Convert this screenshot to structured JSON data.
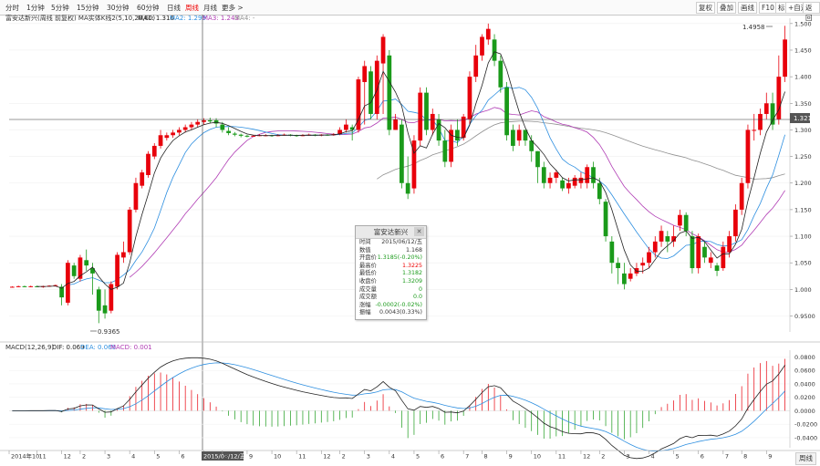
{
  "toolbar": {
    "timeframes": [
      "分时",
      "1分钟",
      "5分钟",
      "15分钟",
      "30分钟",
      "60分钟",
      "日线",
      "周线",
      "月线",
      "更多 >"
    ],
    "active": "周线",
    "right_buttons": [
      "复权",
      "叠加",
      "画线",
      "F10",
      "标记",
      "+自选",
      "返回"
    ]
  },
  "legend": {
    "main": "富安达新兴(周线 前复权) MA实体K线2(5,10,20,60)",
    "ma1": "MA1: 1.316",
    "ma2": "MA2: 1.299",
    "ma3": "MA3: 1.243",
    "ma4": "MA4: -",
    "macd": "MACD(12,26,9)",
    "dif": "DIF: 0.069",
    "dea": "DEA: 0.069",
    "macdv": "MACD: 0.001"
  },
  "colors": {
    "up": "#e8000b",
    "down": "#1a9a1a",
    "ma1": "#222222",
    "ma2": "#2e8fe0",
    "ma3": "#b03cb4",
    "ma4": "#909090"
  },
  "crosshair": {
    "price_label": "1.321",
    "date_label": "2015/06/12/五"
  },
  "annotations": {
    "high_label": "1.4958",
    "low_label": "0.9365"
  },
  "infobox": {
    "title": "富安达新兴",
    "rows": [
      {
        "k": "时间",
        "v": "2015/06/12/五",
        "c": "d"
      },
      {
        "k": "数值",
        "v": "1.168",
        "c": "d"
      },
      {
        "k": "开盘价",
        "v": "1.3185(-0.20%)",
        "c": "g"
      },
      {
        "k": "最高价",
        "v": "1.3225",
        "c": "r"
      },
      {
        "k": "最低价",
        "v": "1.3182",
        "c": "g"
      },
      {
        "k": "收盘价",
        "v": "1.3209",
        "c": "g"
      },
      {
        "k": "成交量",
        "v": "0",
        "c": "g"
      },
      {
        "k": "成交额",
        "v": "0.0",
        "c": "g"
      },
      {
        "k": "涨幅",
        "v": "-0.0002(-0.02%)",
        "c": "g"
      },
      {
        "k": "振幅",
        "v": "0.0043(0.33%)",
        "c": "d"
      }
    ]
  },
  "bottom_tab": "周线",
  "chart_data": [
    {
      "type": "candlestick",
      "title": "富安达新兴(周线 前复权)",
      "y_ticks": [
        0.95,
        1.0,
        1.05,
        1.1,
        1.15,
        1.2,
        1.25,
        1.3,
        1.35,
        1.4,
        1.45,
        1.5
      ],
      "y_tick_labels": [
        "0.9500",
        "1.000",
        "1.050",
        "1.100",
        "1.150",
        "1.200",
        "1.250",
        "1.300",
        "1.350",
        "1.400",
        "1.450",
        "1.500"
      ],
      "ylim": [
        0.92,
        1.51
      ],
      "x_labels": [
        "2014年10",
        "11",
        "12",
        "2",
        "3",
        "4",
        "5",
        "6",
        "2015/06/12/五",
        "8",
        "9",
        "10",
        "11",
        "12",
        "2",
        "3",
        "4",
        "5",
        "6",
        "7",
        "8",
        "9",
        "10",
        "11",
        "12",
        "2",
        "3",
        "4",
        "5",
        "6",
        "7",
        "8",
        "9"
      ],
      "candles": [
        [
          1.005,
          1.005,
          1.006,
          1.004
        ],
        [
          1.005,
          1.006,
          1.007,
          1.004
        ],
        [
          1.006,
          1.005,
          1.007,
          1.004
        ],
        [
          1.005,
          1.006,
          1.007,
          1.004
        ],
        [
          1.006,
          1.005,
          1.007,
          1.004
        ],
        [
          1.005,
          1.006,
          1.007,
          1.003
        ],
        [
          1.006,
          1.007,
          1.008,
          1.005
        ],
        [
          1.007,
          1.008,
          1.009,
          1.006
        ],
        [
          1.005,
          0.985,
          1.01,
          0.97
        ],
        [
          0.975,
          1.05,
          1.055,
          0.97
        ],
        [
          1.045,
          1.025,
          1.05,
          1.02
        ],
        [
          1.02,
          1.06,
          1.065,
          1.015
        ],
        [
          1.055,
          1.045,
          1.075,
          1.035
        ],
        [
          1.04,
          1.03,
          1.05,
          0.99
        ],
        [
          1.0,
          0.96,
          1.005,
          0.9365
        ],
        [
          0.97,
          0.955,
          1.0,
          0.945
        ],
        [
          0.96,
          1.01,
          1.015,
          0.955
        ],
        [
          1.005,
          1.065,
          1.07,
          1.0
        ],
        [
          1.06,
          1.07,
          1.09,
          1.05
        ],
        [
          1.07,
          1.15,
          1.155,
          1.065
        ],
        [
          1.15,
          1.2,
          1.21,
          1.145
        ],
        [
          1.195,
          1.22,
          1.225,
          1.19
        ],
        [
          1.215,
          1.255,
          1.26,
          1.21
        ],
        [
          1.25,
          1.27,
          1.275,
          1.245
        ],
        [
          1.27,
          1.29,
          1.3,
          1.265
        ],
        [
          1.285,
          1.29,
          1.295,
          1.28
        ],
        [
          1.29,
          1.295,
          1.3,
          1.285
        ],
        [
          1.295,
          1.3,
          1.305,
          1.29
        ],
        [
          1.3,
          1.305,
          1.31,
          1.295
        ],
        [
          1.305,
          1.31,
          1.315,
          1.3
        ],
        [
          1.31,
          1.315,
          1.32,
          1.305
        ],
        [
          1.315,
          1.318,
          1.322,
          1.31
        ],
        [
          1.318,
          1.316,
          1.323,
          1.312
        ],
        [
          1.318,
          1.312,
          1.322,
          1.305
        ],
        [
          1.31,
          1.3,
          1.315,
          1.295
        ],
        [
          1.298,
          1.294,
          1.305,
          1.29
        ],
        [
          1.293,
          1.291,
          1.296,
          1.288
        ],
        [
          1.291,
          1.289,
          1.293,
          1.286
        ],
        [
          1.289,
          1.288,
          1.291,
          1.286
        ],
        [
          1.288,
          1.289,
          1.29,
          1.287
        ],
        [
          1.289,
          1.29,
          1.292,
          1.288
        ],
        [
          1.29,
          1.29,
          1.292,
          1.288
        ],
        [
          1.29,
          1.289,
          1.291,
          1.287
        ],
        [
          1.289,
          1.29,
          1.292,
          1.288
        ],
        [
          1.29,
          1.291,
          1.293,
          1.289
        ],
        [
          1.291,
          1.29,
          1.292,
          1.288
        ],
        [
          1.29,
          1.289,
          1.291,
          1.287
        ],
        [
          1.289,
          1.29,
          1.292,
          1.288
        ],
        [
          1.29,
          1.291,
          1.293,
          1.289
        ],
        [
          1.291,
          1.29,
          1.292,
          1.288
        ],
        [
          1.29,
          1.291,
          1.292,
          1.288
        ],
        [
          1.291,
          1.29,
          1.292,
          1.289
        ],
        [
          1.29,
          1.292,
          1.294,
          1.289
        ],
        [
          1.292,
          1.3,
          1.305,
          1.29
        ],
        [
          1.3,
          1.31,
          1.32,
          1.295
        ],
        [
          1.305,
          1.3,
          1.31,
          1.28
        ],
        [
          1.3,
          1.395,
          1.4,
          1.295
        ],
        [
          1.39,
          1.42,
          1.43,
          1.31
        ],
        [
          1.41,
          1.33,
          1.42,
          1.32
        ],
        [
          1.33,
          1.43,
          1.44,
          1.32
        ],
        [
          1.425,
          1.475,
          1.48,
          1.33
        ],
        [
          1.44,
          1.3,
          1.45,
          1.29
        ],
        [
          1.3,
          1.32,
          1.33,
          1.3
        ],
        [
          1.31,
          1.2,
          1.32,
          1.19
        ],
        [
          1.2,
          1.18,
          1.25,
          1.17
        ],
        [
          1.19,
          1.28,
          1.29,
          1.18
        ],
        [
          1.28,
          1.37,
          1.38,
          1.27
        ],
        [
          1.37,
          1.3,
          1.38,
          1.29
        ],
        [
          1.3,
          1.33,
          1.34,
          1.29
        ],
        [
          1.32,
          1.28,
          1.33,
          1.27
        ],
        [
          1.28,
          1.24,
          1.3,
          1.23
        ],
        [
          1.24,
          1.3,
          1.31,
          1.23
        ],
        [
          1.3,
          1.28,
          1.32,
          1.27
        ],
        [
          1.285,
          1.325,
          1.33,
          1.28
        ],
        [
          1.32,
          1.4,
          1.41,
          1.31
        ],
        [
          1.4,
          1.44,
          1.46,
          1.39
        ],
        [
          1.44,
          1.475,
          1.48,
          1.43
        ],
        [
          1.47,
          1.49,
          1.5,
          1.46
        ],
        [
          1.47,
          1.43,
          1.48,
          1.42
        ],
        [
          1.43,
          1.38,
          1.44,
          1.37
        ],
        [
          1.38,
          1.29,
          1.39,
          1.28
        ],
        [
          1.3,
          1.27,
          1.31,
          1.26
        ],
        [
          1.28,
          1.3,
          1.31,
          1.27
        ],
        [
          1.3,
          1.28,
          1.3,
          1.27
        ],
        [
          1.28,
          1.26,
          1.29,
          1.24
        ],
        [
          1.26,
          1.23,
          1.26,
          1.2
        ],
        [
          1.23,
          1.2,
          1.24,
          1.19
        ],
        [
          1.2,
          1.21,
          1.22,
          1.19
        ],
        [
          1.21,
          1.22,
          1.225,
          1.2
        ],
        [
          1.205,
          1.19,
          1.21,
          1.185
        ],
        [
          1.19,
          1.2,
          1.21,
          1.18
        ],
        [
          1.195,
          1.21,
          1.215,
          1.19
        ],
        [
          1.2,
          1.21,
          1.22,
          1.19
        ],
        [
          1.2,
          1.23,
          1.235,
          1.19
        ],
        [
          1.23,
          1.2,
          1.24,
          1.19
        ],
        [
          1.2,
          1.17,
          1.21,
          1.16
        ],
        [
          1.165,
          1.1,
          1.17,
          1.09
        ],
        [
          1.09,
          1.05,
          1.1,
          1.03
        ],
        [
          1.05,
          1.04,
          1.06,
          1.01
        ],
        [
          1.03,
          1.01,
          1.05,
          1.0
        ],
        [
          1.02,
          1.03,
          1.04,
          1.015
        ],
        [
          1.03,
          1.04,
          1.05,
          1.025
        ],
        [
          1.045,
          1.05,
          1.06,
          1.03
        ],
        [
          1.05,
          1.07,
          1.08,
          1.04
        ],
        [
          1.07,
          1.09,
          1.1,
          1.06
        ],
        [
          1.09,
          1.11,
          1.12,
          1.08
        ],
        [
          1.1,
          1.09,
          1.11,
          1.07
        ],
        [
          1.09,
          1.1,
          1.12,
          1.08
        ],
        [
          1.12,
          1.14,
          1.15,
          1.11
        ],
        [
          1.14,
          1.11,
          1.145,
          1.1
        ],
        [
          1.1,
          1.04,
          1.11,
          1.03
        ],
        [
          1.04,
          1.1,
          1.105,
          1.03
        ],
        [
          1.08,
          1.06,
          1.09,
          1.05
        ],
        [
          1.05,
          1.06,
          1.07,
          1.04
        ],
        [
          1.045,
          1.035,
          1.05,
          1.025
        ],
        [
          1.04,
          1.08,
          1.09,
          1.035
        ],
        [
          1.07,
          1.1,
          1.11,
          1.06
        ],
        [
          1.1,
          1.15,
          1.16,
          1.09
        ],
        [
          1.15,
          1.2,
          1.21,
          1.14
        ],
        [
          1.2,
          1.3,
          1.31,
          1.19
        ],
        [
          1.3,
          1.3,
          1.33,
          1.28
        ],
        [
          1.3,
          1.33,
          1.34,
          1.29
        ],
        [
          1.33,
          1.35,
          1.37,
          1.32
        ],
        [
          1.35,
          1.31,
          1.37,
          1.3
        ],
        [
          1.32,
          1.4,
          1.44,
          1.31
        ],
        [
          1.4,
          1.47,
          1.4958,
          1.39
        ]
      ]
    },
    {
      "type": "macd",
      "title": "MACD(12,26,9)",
      "y_ticks": [
        -0.04,
        -0.02,
        0.0,
        0.02,
        0.04,
        0.06,
        0.08
      ],
      "y_tick_labels": [
        "-0.0400",
        "-0.0200",
        "0.0000",
        "0.0200",
        "0.0400",
        "0.0600",
        "0.0800"
      ],
      "ylim": [
        -0.055,
        0.09
      ],
      "series": [
        {
          "name": "DIF"
        },
        {
          "name": "DEA"
        },
        {
          "name": "MACD"
        }
      ]
    }
  ]
}
